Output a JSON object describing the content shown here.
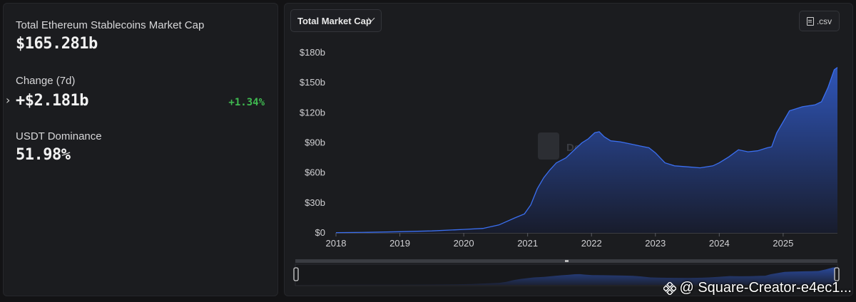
{
  "stats": {
    "market_cap_label": "Total Ethereum Stablecoins Market Cap",
    "market_cap_value": "$165.281b",
    "change_label": "Change (7d)",
    "change_value": "+$2.181b",
    "change_pct": "+1.34%",
    "dominance_label": "USDT Dominance",
    "dominance_value": "51.98%"
  },
  "toolbar": {
    "dropdown_label": "Total Market Cap",
    "csv_label": ".csv"
  },
  "watermark": "DefiLlama",
  "credit": "@ Square-Creator-e4ec1...",
  "colors": {
    "positive": "#3fb950",
    "line": "#3b6ff0",
    "area_top": "#2f55b8",
    "area_bottom": "#181c2c"
  },
  "chart_data": {
    "type": "area",
    "title": "",
    "xlabel": "",
    "ylabel": "",
    "ylim": [
      0,
      180
    ],
    "y_unit": "b",
    "y_ticks": [
      "$0",
      "$30b",
      "$60b",
      "$90b",
      "$120b",
      "$150b",
      "$180b"
    ],
    "x_ticks": [
      "2018",
      "2019",
      "2020",
      "2021",
      "2022",
      "2023",
      "2024",
      "2025"
    ],
    "x_range": [
      2018.0,
      2025.85
    ],
    "series": [
      {
        "x": [
          2018.0,
          2018.5,
          2019.0,
          2019.5,
          2020.0,
          2020.3,
          2020.55,
          2020.8,
          2020.95,
          2021.05,
          2021.15,
          2021.25,
          2021.35,
          2021.45,
          2021.6,
          2021.75,
          2021.85,
          2021.95,
          2022.05,
          2022.12,
          2022.2,
          2022.3,
          2022.45,
          2022.6,
          2022.75,
          2022.9,
          2023.0,
          2023.15,
          2023.3,
          2023.5,
          2023.7,
          2023.9,
          2024.0,
          2024.15,
          2024.3,
          2024.45,
          2024.6,
          2024.75,
          2024.82,
          2024.9,
          2025.0,
          2025.1,
          2025.2,
          2025.3,
          2025.4,
          2025.5,
          2025.6,
          2025.7,
          2025.8,
          2025.85
        ],
        "values": [
          0.3,
          0.6,
          1.2,
          2.0,
          3.5,
          4.5,
          8,
          15,
          19,
          28,
          44,
          55,
          63,
          70,
          75,
          84,
          90,
          94,
          100,
          101,
          96,
          92,
          91,
          89,
          87,
          85,
          80,
          70,
          67,
          66,
          65,
          67,
          70,
          76,
          83,
          81,
          82,
          85,
          86,
          100,
          111,
          122,
          124,
          126,
          127,
          128,
          131,
          145,
          163,
          165.3
        ]
      }
    ]
  }
}
